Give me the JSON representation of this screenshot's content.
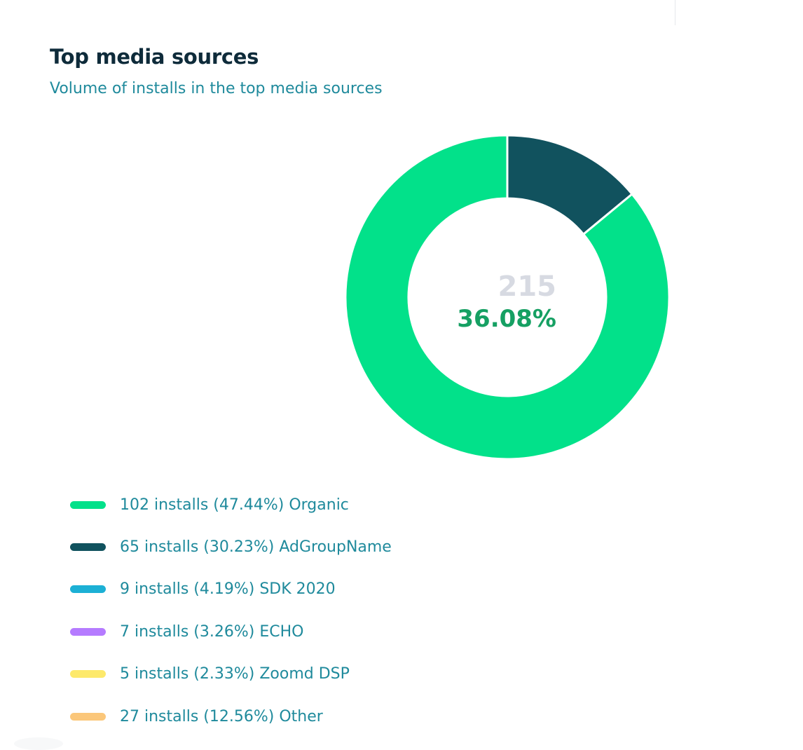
{
  "title": "Top media sources",
  "subtitle": "Volume of installs in the top media sources",
  "center": {
    "total": "215",
    "percent": "36.08%"
  },
  "chart_data": {
    "type": "pie",
    "variant": "donut",
    "title": "Top media sources",
    "subtitle": "Volume of installs in the top media sources",
    "categories": [
      "Organic",
      "AdGroupName",
      "SDK 2020",
      "ECHO",
      "Zoomd DSP",
      "Other"
    ],
    "values": [
      102,
      65,
      9,
      7,
      5,
      27
    ],
    "percentages": [
      47.44,
      30.23,
      4.19,
      3.26,
      2.33,
      12.56
    ],
    "colors": [
      "#02e18a",
      "#11525e",
      "#1cb0d5",
      "#b57bff",
      "#fde96b",
      "#fbc77a"
    ],
    "rendered_arcs": [
      {
        "category": "AdGroupName",
        "color": "#11525e",
        "fraction": 0.1401
      },
      {
        "category": "Organic",
        "color": "#02e18a",
        "fraction": 0.8599
      }
    ],
    "center_total": 215,
    "center_percent": "36.08%",
    "legend_position": "bottom"
  },
  "legend": [
    {
      "text": "102 installs (47.44%) Organic",
      "color": "#02e18a"
    },
    {
      "text": "65 installs (30.23%) AdGroupName",
      "color": "#11525e"
    },
    {
      "text": "9 installs (4.19%) SDK 2020",
      "color": "#1cb0d5"
    },
    {
      "text": "7 installs (3.26%) ECHO",
      "color": "#b57bff"
    },
    {
      "text": "5 installs (2.33%) Zoomd DSP",
      "color": "#fde96b"
    },
    {
      "text": "27 installs (12.56%) Other",
      "color": "#fbc77a"
    }
  ]
}
